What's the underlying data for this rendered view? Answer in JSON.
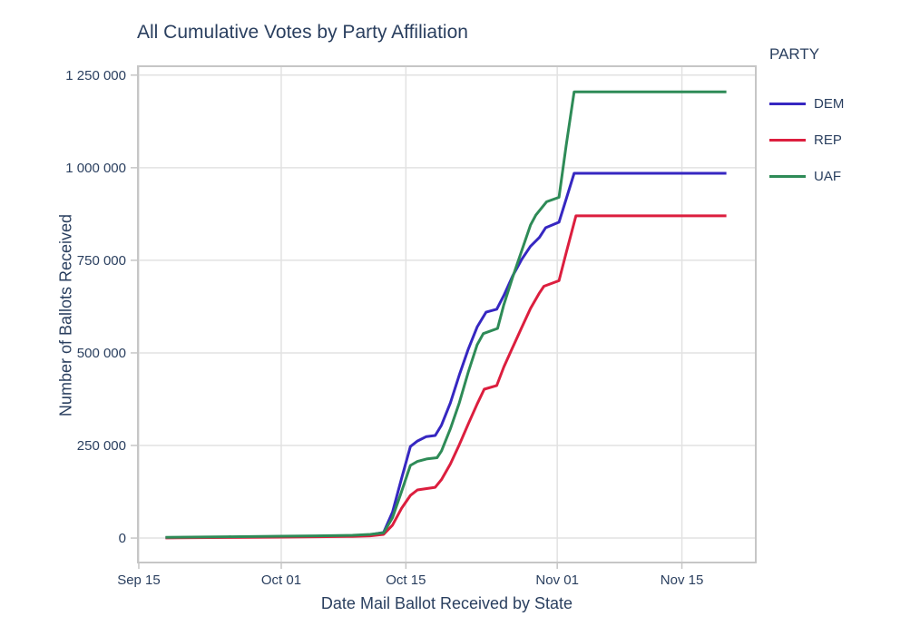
{
  "title": "All Cumulative Votes by Party Affiliation",
  "legend": {
    "title": "PARTY"
  },
  "chart_data": {
    "type": "line",
    "title": "All Cumulative Votes by Party Affiliation",
    "xlabel": "Date Mail Ballot Received by State",
    "ylabel": "Number of Ballots Received",
    "x_unit": "days since Sep 15",
    "x_domain": [
      -0.1,
      69.3
    ],
    "y_domain": [
      -66000,
      1274000
    ],
    "grid": true,
    "legend_position": "right",
    "x_ticks": [
      {
        "day": 0,
        "label": "Sep 15"
      },
      {
        "day": 16,
        "label": "Oct 01"
      },
      {
        "day": 30,
        "label": "Oct 15"
      },
      {
        "day": 47,
        "label": "Nov 01"
      },
      {
        "day": 61,
        "label": "Nov 15"
      }
    ],
    "y_ticks": [
      {
        "value": 0,
        "label": "0"
      },
      {
        "value": 250000,
        "label": "250 000"
      },
      {
        "value": 500000,
        "label": "500 000"
      },
      {
        "value": 750000,
        "label": "750 000"
      },
      {
        "value": 1000000,
        "label": "1 000 000"
      },
      {
        "value": 1250000,
        "label": "1 250 000"
      }
    ],
    "colors": {
      "text": "#2a3f5f",
      "grid": "#e2e2e2",
      "border": "#c6c6c6",
      "tick": "#c6c6c6"
    },
    "series": [
      {
        "name": "DEM",
        "color": "#3627c1",
        "points": [
          [
            3,
            1000
          ],
          [
            10,
            2500
          ],
          [
            16,
            4000
          ],
          [
            20,
            5000
          ],
          [
            24,
            6500
          ],
          [
            26,
            9000
          ],
          [
            27.5,
            15000
          ],
          [
            28.5,
            70000
          ],
          [
            29.5,
            160000
          ],
          [
            30.5,
            247000
          ],
          [
            31.3,
            262000
          ],
          [
            32.3,
            274000
          ],
          [
            33.3,
            277000
          ],
          [
            34,
            305000
          ],
          [
            35,
            365000
          ],
          [
            36,
            440000
          ],
          [
            37,
            510000
          ],
          [
            38,
            570000
          ],
          [
            39,
            610000
          ],
          [
            40.2,
            618000
          ],
          [
            41,
            655000
          ],
          [
            42,
            708000
          ],
          [
            43,
            752000
          ],
          [
            44,
            788000
          ],
          [
            45,
            812000
          ],
          [
            45.7,
            838000
          ],
          [
            47.2,
            853000
          ],
          [
            48,
            915000
          ],
          [
            48.9,
            985000
          ],
          [
            66,
            985000
          ]
        ]
      },
      {
        "name": "REP",
        "color": "#dc1e3e",
        "points": [
          [
            3,
            500
          ],
          [
            10,
            1500
          ],
          [
            16,
            2500
          ],
          [
            20,
            3500
          ],
          [
            24,
            4500
          ],
          [
            26,
            6000
          ],
          [
            27.5,
            10000
          ],
          [
            28.5,
            35000
          ],
          [
            29.5,
            80000
          ],
          [
            30.5,
            115000
          ],
          [
            31.3,
            130000
          ],
          [
            33.3,
            137000
          ],
          [
            34,
            158000
          ],
          [
            35,
            200000
          ],
          [
            36,
            252000
          ],
          [
            37,
            308000
          ],
          [
            38,
            362000
          ],
          [
            38.8,
            402000
          ],
          [
            40.2,
            412000
          ],
          [
            41,
            462000
          ],
          [
            42,
            515000
          ],
          [
            43,
            568000
          ],
          [
            44,
            620000
          ],
          [
            45,
            662000
          ],
          [
            45.5,
            680000
          ],
          [
            47.2,
            695000
          ],
          [
            48,
            770000
          ],
          [
            49.1,
            870000
          ],
          [
            66,
            870000
          ]
        ]
      },
      {
        "name": "UAF",
        "color": "#2e8b57",
        "points": [
          [
            3,
            2000
          ],
          [
            10,
            3500
          ],
          [
            16,
            5000
          ],
          [
            20,
            6000
          ],
          [
            24,
            7500
          ],
          [
            26,
            10000
          ],
          [
            27.5,
            14000
          ],
          [
            28.5,
            55000
          ],
          [
            29.5,
            125000
          ],
          [
            30.5,
            196000
          ],
          [
            31.3,
            207000
          ],
          [
            32.4,
            214000
          ],
          [
            33.5,
            217000
          ],
          [
            34,
            235000
          ],
          [
            35,
            295000
          ],
          [
            36,
            365000
          ],
          [
            37,
            448000
          ],
          [
            38,
            522000
          ],
          [
            38.7,
            552000
          ],
          [
            40.3,
            566000
          ],
          [
            41,
            630000
          ],
          [
            42,
            705000
          ],
          [
            43,
            775000
          ],
          [
            44,
            845000
          ],
          [
            44.6,
            872000
          ],
          [
            45.8,
            908000
          ],
          [
            47.2,
            920000
          ],
          [
            48,
            1060000
          ],
          [
            48.9,
            1205000
          ],
          [
            66,
            1205000
          ]
        ]
      }
    ]
  }
}
